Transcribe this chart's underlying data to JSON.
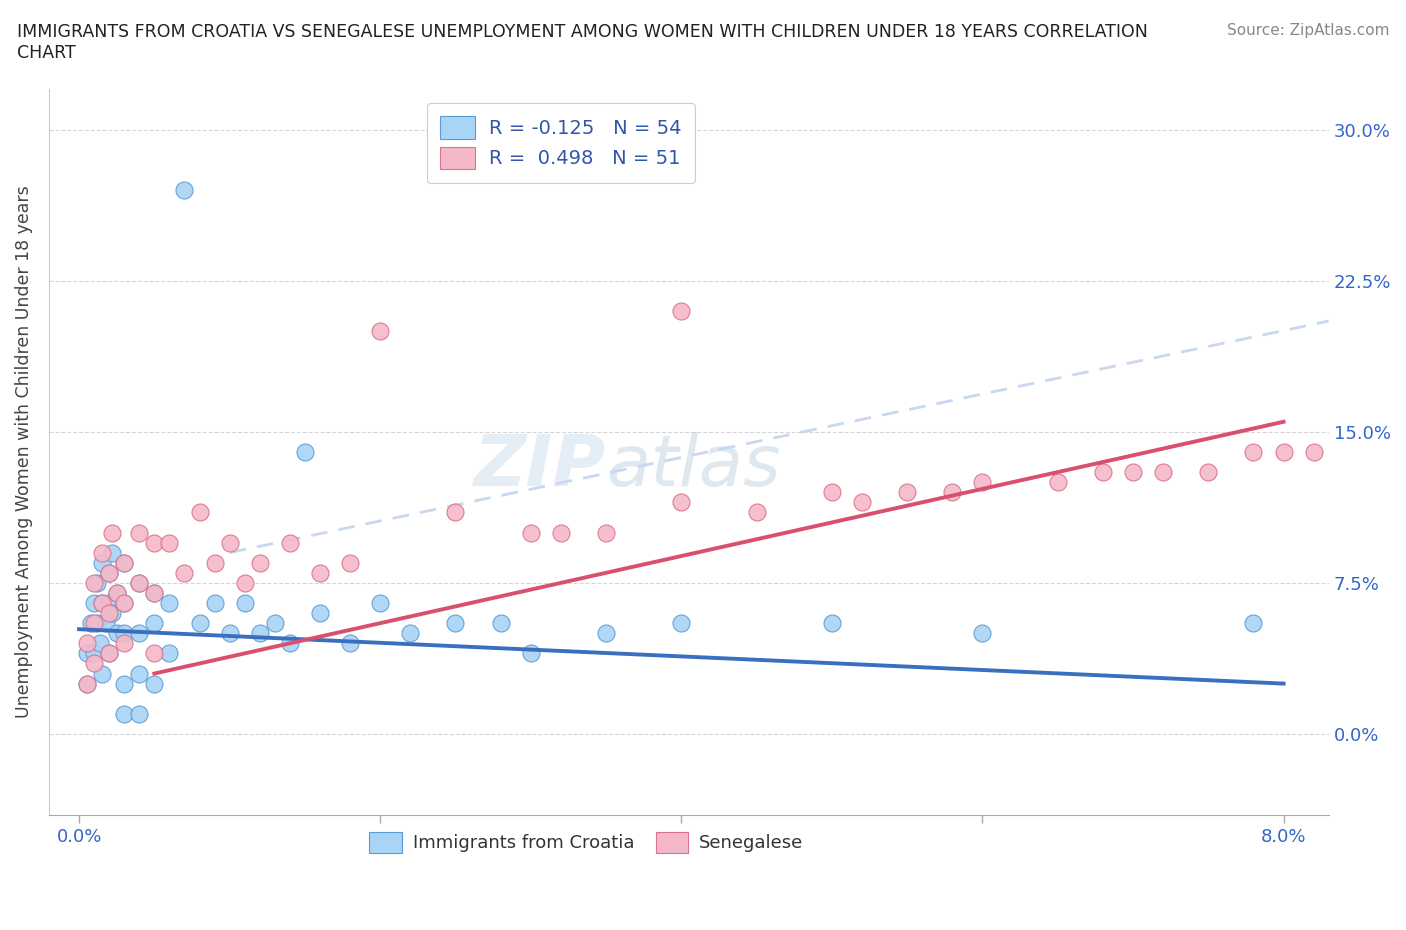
{
  "title": "IMMIGRANTS FROM CROATIA VS SENEGALESE UNEMPLOYMENT AMONG WOMEN WITH CHILDREN UNDER 18 YEARS CORRELATION\nCHART",
  "source": "Source: ZipAtlas.com",
  "ylabel": "Unemployment Among Women with Children Under 18 years",
  "xlabel_ticks_pos": [
    0.0,
    0.02,
    0.04,
    0.06,
    0.08
  ],
  "xlabel_ticks_labels": [
    "0.0%",
    "",
    "",
    "",
    "8.0%"
  ],
  "ytick_labels": [
    "0.0%",
    "7.5%",
    "15.0%",
    "22.5%",
    "30.0%"
  ],
  "ytick_vals": [
    0.0,
    0.075,
    0.15,
    0.225,
    0.3
  ],
  "xlim": [
    -0.002,
    0.083
  ],
  "ylim": [
    -0.04,
    0.32
  ],
  "watermark_line1": "ZIP",
  "watermark_line2": "atlas",
  "legend1_label": "R = -0.125   N = 54",
  "legend2_label": "R =  0.498   N = 51",
  "blue_color": "#A8D4F5",
  "pink_color": "#F5B8C8",
  "blue_edge": "#5B9BD5",
  "pink_edge": "#D9728A",
  "trendline_blue": "#3A6FBF",
  "trendline_pink": "#D94F6E",
  "trendline_dashed_color": "#C8D8F0",
  "blue_scatter_x": [
    0.0005,
    0.0005,
    0.0008,
    0.001,
    0.001,
    0.0012,
    0.0012,
    0.0014,
    0.0015,
    0.0015,
    0.0015,
    0.0018,
    0.002,
    0.002,
    0.002,
    0.0022,
    0.0022,
    0.0025,
    0.0025,
    0.003,
    0.003,
    0.003,
    0.003,
    0.003,
    0.004,
    0.004,
    0.004,
    0.004,
    0.005,
    0.005,
    0.005,
    0.006,
    0.006,
    0.007,
    0.008,
    0.009,
    0.01,
    0.011,
    0.012,
    0.013,
    0.014,
    0.015,
    0.016,
    0.018,
    0.02,
    0.022,
    0.025,
    0.028,
    0.03,
    0.035,
    0.04,
    0.05,
    0.06,
    0.078
  ],
  "blue_scatter_y": [
    0.04,
    0.025,
    0.055,
    0.065,
    0.04,
    0.075,
    0.055,
    0.045,
    0.085,
    0.065,
    0.03,
    0.055,
    0.08,
    0.065,
    0.04,
    0.09,
    0.06,
    0.07,
    0.05,
    0.085,
    0.065,
    0.05,
    0.025,
    0.01,
    0.075,
    0.05,
    0.03,
    0.01,
    0.07,
    0.055,
    0.025,
    0.065,
    0.04,
    0.27,
    0.055,
    0.065,
    0.05,
    0.065,
    0.05,
    0.055,
    0.045,
    0.14,
    0.06,
    0.045,
    0.065,
    0.05,
    0.055,
    0.055,
    0.04,
    0.05,
    0.055,
    0.055,
    0.05,
    0.055
  ],
  "pink_scatter_x": [
    0.0005,
    0.0005,
    0.001,
    0.001,
    0.001,
    0.0015,
    0.0015,
    0.002,
    0.002,
    0.002,
    0.0022,
    0.0025,
    0.003,
    0.003,
    0.003,
    0.004,
    0.004,
    0.005,
    0.005,
    0.005,
    0.006,
    0.007,
    0.008,
    0.009,
    0.01,
    0.011,
    0.012,
    0.014,
    0.016,
    0.018,
    0.02,
    0.025,
    0.03,
    0.032,
    0.035,
    0.04,
    0.045,
    0.05,
    0.052,
    0.055,
    0.058,
    0.06,
    0.065,
    0.068,
    0.07,
    0.072,
    0.075,
    0.078,
    0.08,
    0.082,
    0.04
  ],
  "pink_scatter_y": [
    0.045,
    0.025,
    0.075,
    0.055,
    0.035,
    0.09,
    0.065,
    0.08,
    0.06,
    0.04,
    0.1,
    0.07,
    0.085,
    0.065,
    0.045,
    0.1,
    0.075,
    0.095,
    0.07,
    0.04,
    0.095,
    0.08,
    0.11,
    0.085,
    0.095,
    0.075,
    0.085,
    0.095,
    0.08,
    0.085,
    0.2,
    0.11,
    0.1,
    0.1,
    0.1,
    0.21,
    0.11,
    0.12,
    0.115,
    0.12,
    0.12,
    0.125,
    0.125,
    0.13,
    0.13,
    0.13,
    0.13,
    0.14,
    0.14,
    0.14,
    0.115
  ],
  "blue_line_x": [
    0.0,
    0.08
  ],
  "blue_line_y": [
    0.052,
    0.025
  ],
  "pink_line_x": [
    0.005,
    0.08
  ],
  "pink_line_y": [
    0.03,
    0.155
  ],
  "dashed_line_x": [
    0.01,
    0.083
  ],
  "dashed_line_y": [
    0.09,
    0.205
  ]
}
